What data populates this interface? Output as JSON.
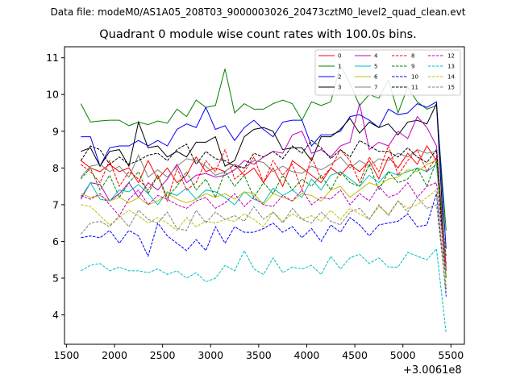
{
  "header": {
    "data_file": "Data file: modeM0/AS1A05_208T03_9000003026_20473cztM0_level2_quad_clean.evt"
  },
  "chart_data": {
    "type": "line",
    "title": "Quadrant 0 module wise count rates with 100.0s bins.",
    "xlabel": "",
    "ylabel": "",
    "x_offset_label": "+3.0061e8",
    "xlim": [
      1480,
      5640
    ],
    "ylim": [
      3.2,
      11.3
    ],
    "xticks": [
      1500,
      2000,
      2500,
      3000,
      3500,
      4000,
      4500,
      5000,
      5500
    ],
    "yticks": [
      4,
      5,
      6,
      7,
      8,
      9,
      10,
      11
    ],
    "legend_position": "upper-right",
    "x": [
      1650,
      1750,
      1850,
      1950,
      2050,
      2150,
      2250,
      2350,
      2450,
      2550,
      2650,
      2750,
      2850,
      2950,
      3050,
      3150,
      3250,
      3350,
      3450,
      3550,
      3650,
      3750,
      3850,
      3950,
      4050,
      4150,
      4250,
      4350,
      4450,
      4550,
      4650,
      4750,
      4850,
      4950,
      5050,
      5150,
      5250,
      5350,
      5450
    ],
    "series": [
      {
        "name": "0",
        "color": "#ff0000",
        "dash": "solid",
        "values": [
          8.2,
          8.0,
          7.9,
          8.1,
          7.9,
          8.0,
          7.6,
          8.2,
          7.7,
          8.0,
          7.6,
          7.8,
          8.3,
          7.9,
          8.0,
          7.9,
          8.1,
          7.8,
          8.0,
          7.6,
          8.0,
          7.5,
          8.2,
          8.0,
          7.8,
          7.6,
          8.0,
          7.8,
          8.1,
          7.9,
          8.2,
          7.7,
          8.3,
          8.0,
          8.4,
          8.1,
          8.6,
          8.2,
          5.2
        ]
      },
      {
        "name": "1",
        "color": "#008000",
        "dash": "solid",
        "values": [
          9.75,
          9.25,
          9.28,
          9.3,
          9.3,
          9.15,
          9.25,
          9.18,
          9.28,
          9.22,
          9.6,
          9.4,
          9.85,
          9.65,
          9.7,
          10.7,
          9.5,
          9.75,
          9.6,
          9.6,
          9.75,
          9.85,
          9.75,
          9.3,
          9.8,
          9.7,
          9.8,
          10.8,
          10.3,
          9.7,
          10.0,
          9.9,
          10.4,
          9.5,
          10.2,
          9.8,
          9.6,
          9.7,
          6.3
        ]
      },
      {
        "name": "2",
        "color": "#0000ff",
        "dash": "solid",
        "values": [
          8.85,
          8.85,
          8.05,
          8.55,
          8.6,
          8.6,
          8.75,
          8.6,
          8.75,
          8.6,
          9.05,
          9.2,
          9.1,
          9.65,
          9.05,
          9.15,
          8.75,
          9.1,
          9.3,
          9.05,
          8.85,
          9.25,
          9.3,
          9.3,
          8.6,
          8.9,
          8.9,
          9.0,
          9.4,
          9.45,
          9.3,
          9.1,
          9.6,
          9.45,
          9.5,
          9.75,
          9.65,
          9.8,
          5.8
        ]
      },
      {
        "name": "3",
        "color": "#000000",
        "dash": "solid",
        "values": [
          8.45,
          8.55,
          8.05,
          8.45,
          8.5,
          8.05,
          9.25,
          8.55,
          8.6,
          8.3,
          8.45,
          8.3,
          8.7,
          8.7,
          8.85,
          8.05,
          8.2,
          8.85,
          9.05,
          9.1,
          9.0,
          8.5,
          8.55,
          8.55,
          8.2,
          8.85,
          8.85,
          9.05,
          9.35,
          8.95,
          9.25,
          9.1,
          9.2,
          8.9,
          9.25,
          9.3,
          9.2,
          9.75,
          5.0
        ]
      },
      {
        "name": "4",
        "color": "#bf00bf",
        "dash": "solid",
        "values": [
          7.15,
          7.6,
          7.55,
          7.1,
          7.3,
          7.6,
          7.2,
          7.6,
          7.4,
          7.7,
          8.1,
          7.6,
          7.8,
          7.85,
          7.75,
          7.8,
          7.95,
          8.2,
          8.1,
          8.3,
          8.45,
          8.4,
          8.9,
          9.0,
          8.4,
          8.5,
          8.3,
          8.6,
          8.7,
          9.75,
          8.5,
          8.7,
          8.6,
          9.0,
          8.8,
          9.4,
          9.1,
          8.6,
          5.3
        ]
      },
      {
        "name": "5",
        "color": "#00bfbf",
        "dash": "solid",
        "values": [
          7.2,
          7.6,
          7.15,
          7.1,
          7.4,
          7.35,
          7.55,
          7.3,
          7.0,
          7.35,
          7.25,
          7.45,
          7.15,
          7.4,
          7.35,
          7.2,
          7.0,
          7.35,
          7.15,
          7.05,
          7.45,
          7.25,
          7.4,
          7.2,
          7.7,
          7.4,
          7.8,
          7.9,
          7.7,
          7.5,
          7.8,
          7.6,
          7.9,
          7.8,
          7.9,
          8.0,
          7.9,
          8.1,
          5.0
        ]
      },
      {
        "name": "6",
        "color": "#bfbf00",
        "dash": "solid",
        "values": [
          7.3,
          7.2,
          7.25,
          7.1,
          7.2,
          7.05,
          7.2,
          7.0,
          7.1,
          7.3,
          7.15,
          7.05,
          7.15,
          7.3,
          7.2,
          7.3,
          7.15,
          7.35,
          7.3,
          7.0,
          7.3,
          7.2,
          7.1,
          7.3,
          7.25,
          7.1,
          7.4,
          7.5,
          7.2,
          7.4,
          7.6,
          7.5,
          7.7,
          7.75,
          7.95,
          7.9,
          8.1,
          8.2,
          5.1
        ]
      },
      {
        "name": "7",
        "color": "#808080",
        "dash": "solid",
        "values": [
          7.75,
          8.05,
          8.1,
          7.9,
          8.05,
          7.75,
          8.35,
          7.75,
          7.95,
          7.75,
          8.05,
          8.25,
          8.2,
          8.05,
          7.8,
          7.9,
          8.1,
          8.0,
          8.2,
          8.15,
          7.9,
          8.05,
          7.9,
          7.85,
          8.05,
          7.95,
          8.1,
          8.3,
          8.0,
          8.2,
          8.05,
          8.25,
          8.2,
          8.4,
          8.3,
          8.5,
          8.4,
          8.45,
          5.25
        ]
      },
      {
        "name": "8",
        "color": "#ff0000",
        "dash": "dashed",
        "values": [
          8.1,
          7.9,
          7.6,
          8.2,
          7.5,
          7.9,
          7.7,
          7.4,
          7.8,
          7.1,
          8.0,
          7.4,
          7.6,
          8.2,
          7.9,
          8.5,
          7.7,
          7.9,
          8.3,
          7.6,
          8.2,
          7.8,
          8.1,
          7.4,
          8.3,
          7.7,
          8.0,
          8.5,
          8.2,
          7.6,
          8.3,
          7.9,
          8.6,
          7.8,
          8.2,
          8.5,
          7.9,
          8.3,
          5.4
        ]
      },
      {
        "name": "9",
        "color": "#008000",
        "dash": "dashed",
        "values": [
          7.7,
          8.0,
          7.4,
          7.8,
          7.2,
          7.6,
          7.9,
          7.3,
          7.8,
          7.2,
          7.5,
          7.9,
          7.4,
          7.7,
          7.2,
          7.9,
          7.5,
          7.8,
          7.2,
          7.6,
          7.3,
          7.8,
          7.4,
          7.7,
          7.5,
          7.8,
          7.4,
          7.9,
          7.6,
          7.5,
          8.1,
          7.4,
          7.9,
          7.6,
          7.7,
          8.0,
          7.5,
          8.2,
          5.6
        ]
      },
      {
        "name": "10",
        "color": "#0000ff",
        "dash": "dashed",
        "values": [
          6.1,
          6.15,
          6.1,
          6.3,
          5.95,
          6.3,
          6.15,
          5.6,
          6.5,
          6.15,
          5.95,
          5.75,
          6.05,
          5.75,
          6.4,
          5.95,
          6.4,
          6.25,
          6.25,
          6.35,
          6.5,
          6.25,
          6.4,
          6.1,
          6.35,
          6.0,
          6.45,
          6.25,
          6.65,
          6.45,
          6.15,
          6.45,
          6.5,
          6.55,
          6.75,
          6.4,
          6.45,
          7.3,
          4.5
        ]
      },
      {
        "name": "11",
        "color": "#000000",
        "dash": "dashed",
        "values": [
          8.2,
          8.6,
          8.5,
          8.1,
          8.3,
          8.1,
          8.2,
          8.35,
          8.4,
          8.2,
          8.5,
          8.65,
          8.1,
          8.45,
          8.25,
          8.2,
          8.05,
          8.0,
          8.4,
          8.3,
          8.45,
          8.25,
          8.6,
          8.4,
          8.75,
          8.55,
          8.25,
          8.5,
          8.3,
          8.75,
          8.6,
          8.45,
          8.45,
          8.3,
          8.55,
          8.3,
          8.15,
          8.5,
          4.7
        ]
      },
      {
        "name": "12",
        "color": "#bf00bf",
        "dash": "dashed",
        "values": [
          7.25,
          7.15,
          7.3,
          7.0,
          6.7,
          7.15,
          7.4,
          7.0,
          7.25,
          7.15,
          7.0,
          6.9,
          7.1,
          7.2,
          6.9,
          7.05,
          7.3,
          6.95,
          7.2,
          7.0,
          6.95,
          7.25,
          7.1,
          7.4,
          7.0,
          7.2,
          7.15,
          7.4,
          7.0,
          7.3,
          7.1,
          7.5,
          7.2,
          7.3,
          7.6,
          7.2,
          7.5,
          7.6,
          5.2
        ]
      },
      {
        "name": "13",
        "color": "#00bfbf",
        "dash": "dashed",
        "values": [
          5.2,
          5.35,
          5.4,
          5.2,
          5.3,
          5.2,
          5.2,
          5.15,
          5.25,
          5.1,
          5.2,
          5.0,
          5.15,
          4.9,
          5.0,
          5.35,
          5.2,
          5.75,
          5.25,
          5.1,
          5.55,
          5.15,
          5.3,
          5.25,
          5.35,
          5.1,
          5.6,
          5.25,
          5.55,
          5.65,
          5.4,
          5.55,
          5.3,
          5.3,
          5.7,
          5.6,
          5.5,
          5.8,
          3.5
        ]
      },
      {
        "name": "14",
        "color": "#bfbf00",
        "dash": "dashed",
        "values": [
          7.0,
          6.95,
          6.7,
          6.45,
          6.65,
          6.85,
          6.7,
          6.5,
          6.65,
          6.5,
          6.3,
          6.65,
          6.4,
          6.55,
          6.5,
          6.6,
          6.55,
          6.75,
          6.6,
          6.4,
          6.8,
          6.55,
          6.75,
          6.6,
          6.7,
          6.55,
          6.85,
          6.6,
          6.9,
          6.75,
          6.6,
          6.95,
          6.75,
          7.1,
          6.9,
          7.0,
          7.2,
          7.4,
          4.8
        ]
      },
      {
        "name": "15",
        "color": "#808080",
        "dash": "dashed",
        "values": [
          6.2,
          6.5,
          6.55,
          6.4,
          6.7,
          6.4,
          6.85,
          6.6,
          6.5,
          6.8,
          6.35,
          6.3,
          6.85,
          6.5,
          6.8,
          6.6,
          6.7,
          6.55,
          6.95,
          6.6,
          6.8,
          6.5,
          6.9,
          6.6,
          6.5,
          6.8,
          6.55,
          6.45,
          6.8,
          6.9,
          6.6,
          7.0,
          6.7,
          7.1,
          6.8,
          7.2,
          6.9,
          7.0,
          4.6
        ]
      }
    ]
  }
}
